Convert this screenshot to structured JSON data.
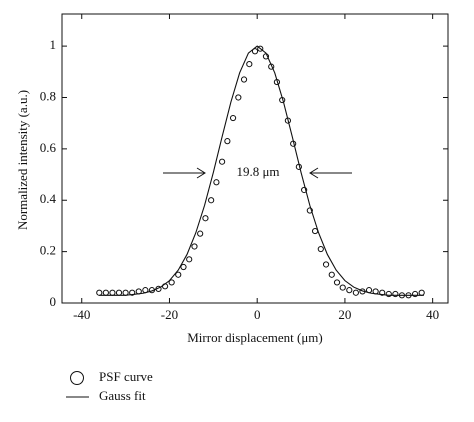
{
  "chart_data": {
    "type": "scatter",
    "x_label": "Mirror displacement (μm)",
    "y_label": "Normalized intensity (a.u.)",
    "annotation": "19.8 μm",
    "xlim": [
      -44.5,
      43.5
    ],
    "ylim": [
      0,
      1.125
    ],
    "xticks": [
      -40,
      -20,
      0,
      20,
      40
    ],
    "yticks": [
      0,
      0.2,
      0.4,
      0.6,
      0.8,
      1
    ],
    "grid": false,
    "legend": "bottom-left",
    "series": [
      {
        "name": "PSF curve",
        "type": "scatter",
        "color": "#111111",
        "x": [
          -36,
          -34.5,
          -33,
          -31.5,
          -30,
          -28.5,
          -27,
          -25.5,
          -24,
          -22.5,
          -21,
          -19.5,
          -18,
          -16.8,
          -15.5,
          -14.3,
          -13,
          -11.8,
          -10.5,
          -9.3,
          -8,
          -6.8,
          -5.5,
          -4.3,
          -3,
          -1.8,
          -0.5,
          0.7,
          2,
          3.2,
          4.5,
          5.7,
          7,
          8.2,
          9.5,
          10.7,
          12,
          13.2,
          14.5,
          15.7,
          17,
          18.2,
          19.5,
          21,
          22.5,
          24,
          25.5,
          27,
          28.5,
          30,
          31.5,
          33,
          34.5,
          36,
          37.5
        ],
        "values": [
          0.04,
          0.04,
          0.04,
          0.04,
          0.04,
          0.04,
          0.045,
          0.05,
          0.05,
          0.055,
          0.065,
          0.08,
          0.11,
          0.14,
          0.17,
          0.22,
          0.27,
          0.33,
          0.4,
          0.47,
          0.55,
          0.63,
          0.72,
          0.8,
          0.87,
          0.93,
          0.98,
          0.99,
          0.96,
          0.92,
          0.86,
          0.79,
          0.71,
          0.62,
          0.53,
          0.44,
          0.36,
          0.28,
          0.21,
          0.15,
          0.11,
          0.08,
          0.06,
          0.05,
          0.04,
          0.045,
          0.05,
          0.045,
          0.04,
          0.035,
          0.035,
          0.03,
          0.03,
          0.035,
          0.04
        ]
      },
      {
        "name": "Gauss fit",
        "type": "line",
        "color": "#111111",
        "x": [
          -36,
          -34,
          -32,
          -30,
          -28,
          -26,
          -24,
          -22,
          -20,
          -18,
          -16,
          -14,
          -12,
          -10,
          -8,
          -6,
          -4,
          -2,
          0,
          2,
          4,
          6,
          8,
          10,
          12,
          14,
          16,
          18,
          20,
          22,
          24,
          26,
          28,
          30,
          32,
          34,
          36,
          38
        ],
        "values": [
          0.03,
          0.03,
          0.03,
          0.03,
          0.034,
          0.038,
          0.047,
          0.062,
          0.087,
          0.128,
          0.189,
          0.273,
          0.38,
          0.508,
          0.647,
          0.782,
          0.896,
          0.973,
          1,
          0.973,
          0.896,
          0.782,
          0.647,
          0.508,
          0.38,
          0.273,
          0.189,
          0.128,
          0.087,
          0.062,
          0.047,
          0.038,
          0.034,
          0.03,
          0.03,
          0.03,
          0.03,
          0.03
        ]
      }
    ]
  }
}
